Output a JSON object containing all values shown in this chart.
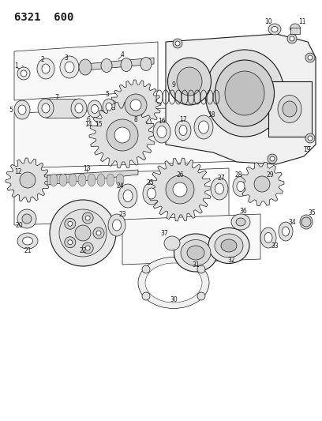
{
  "title": "6321  600",
  "bg_color": "#ffffff",
  "line_color": "#1a1a1a",
  "fig_width": 4.08,
  "fig_height": 5.33,
  "dpi": 100,
  "lw_main": 0.8,
  "lw_thin": 0.5,
  "label_fontsize": 5.5,
  "title_fontsize": 10
}
